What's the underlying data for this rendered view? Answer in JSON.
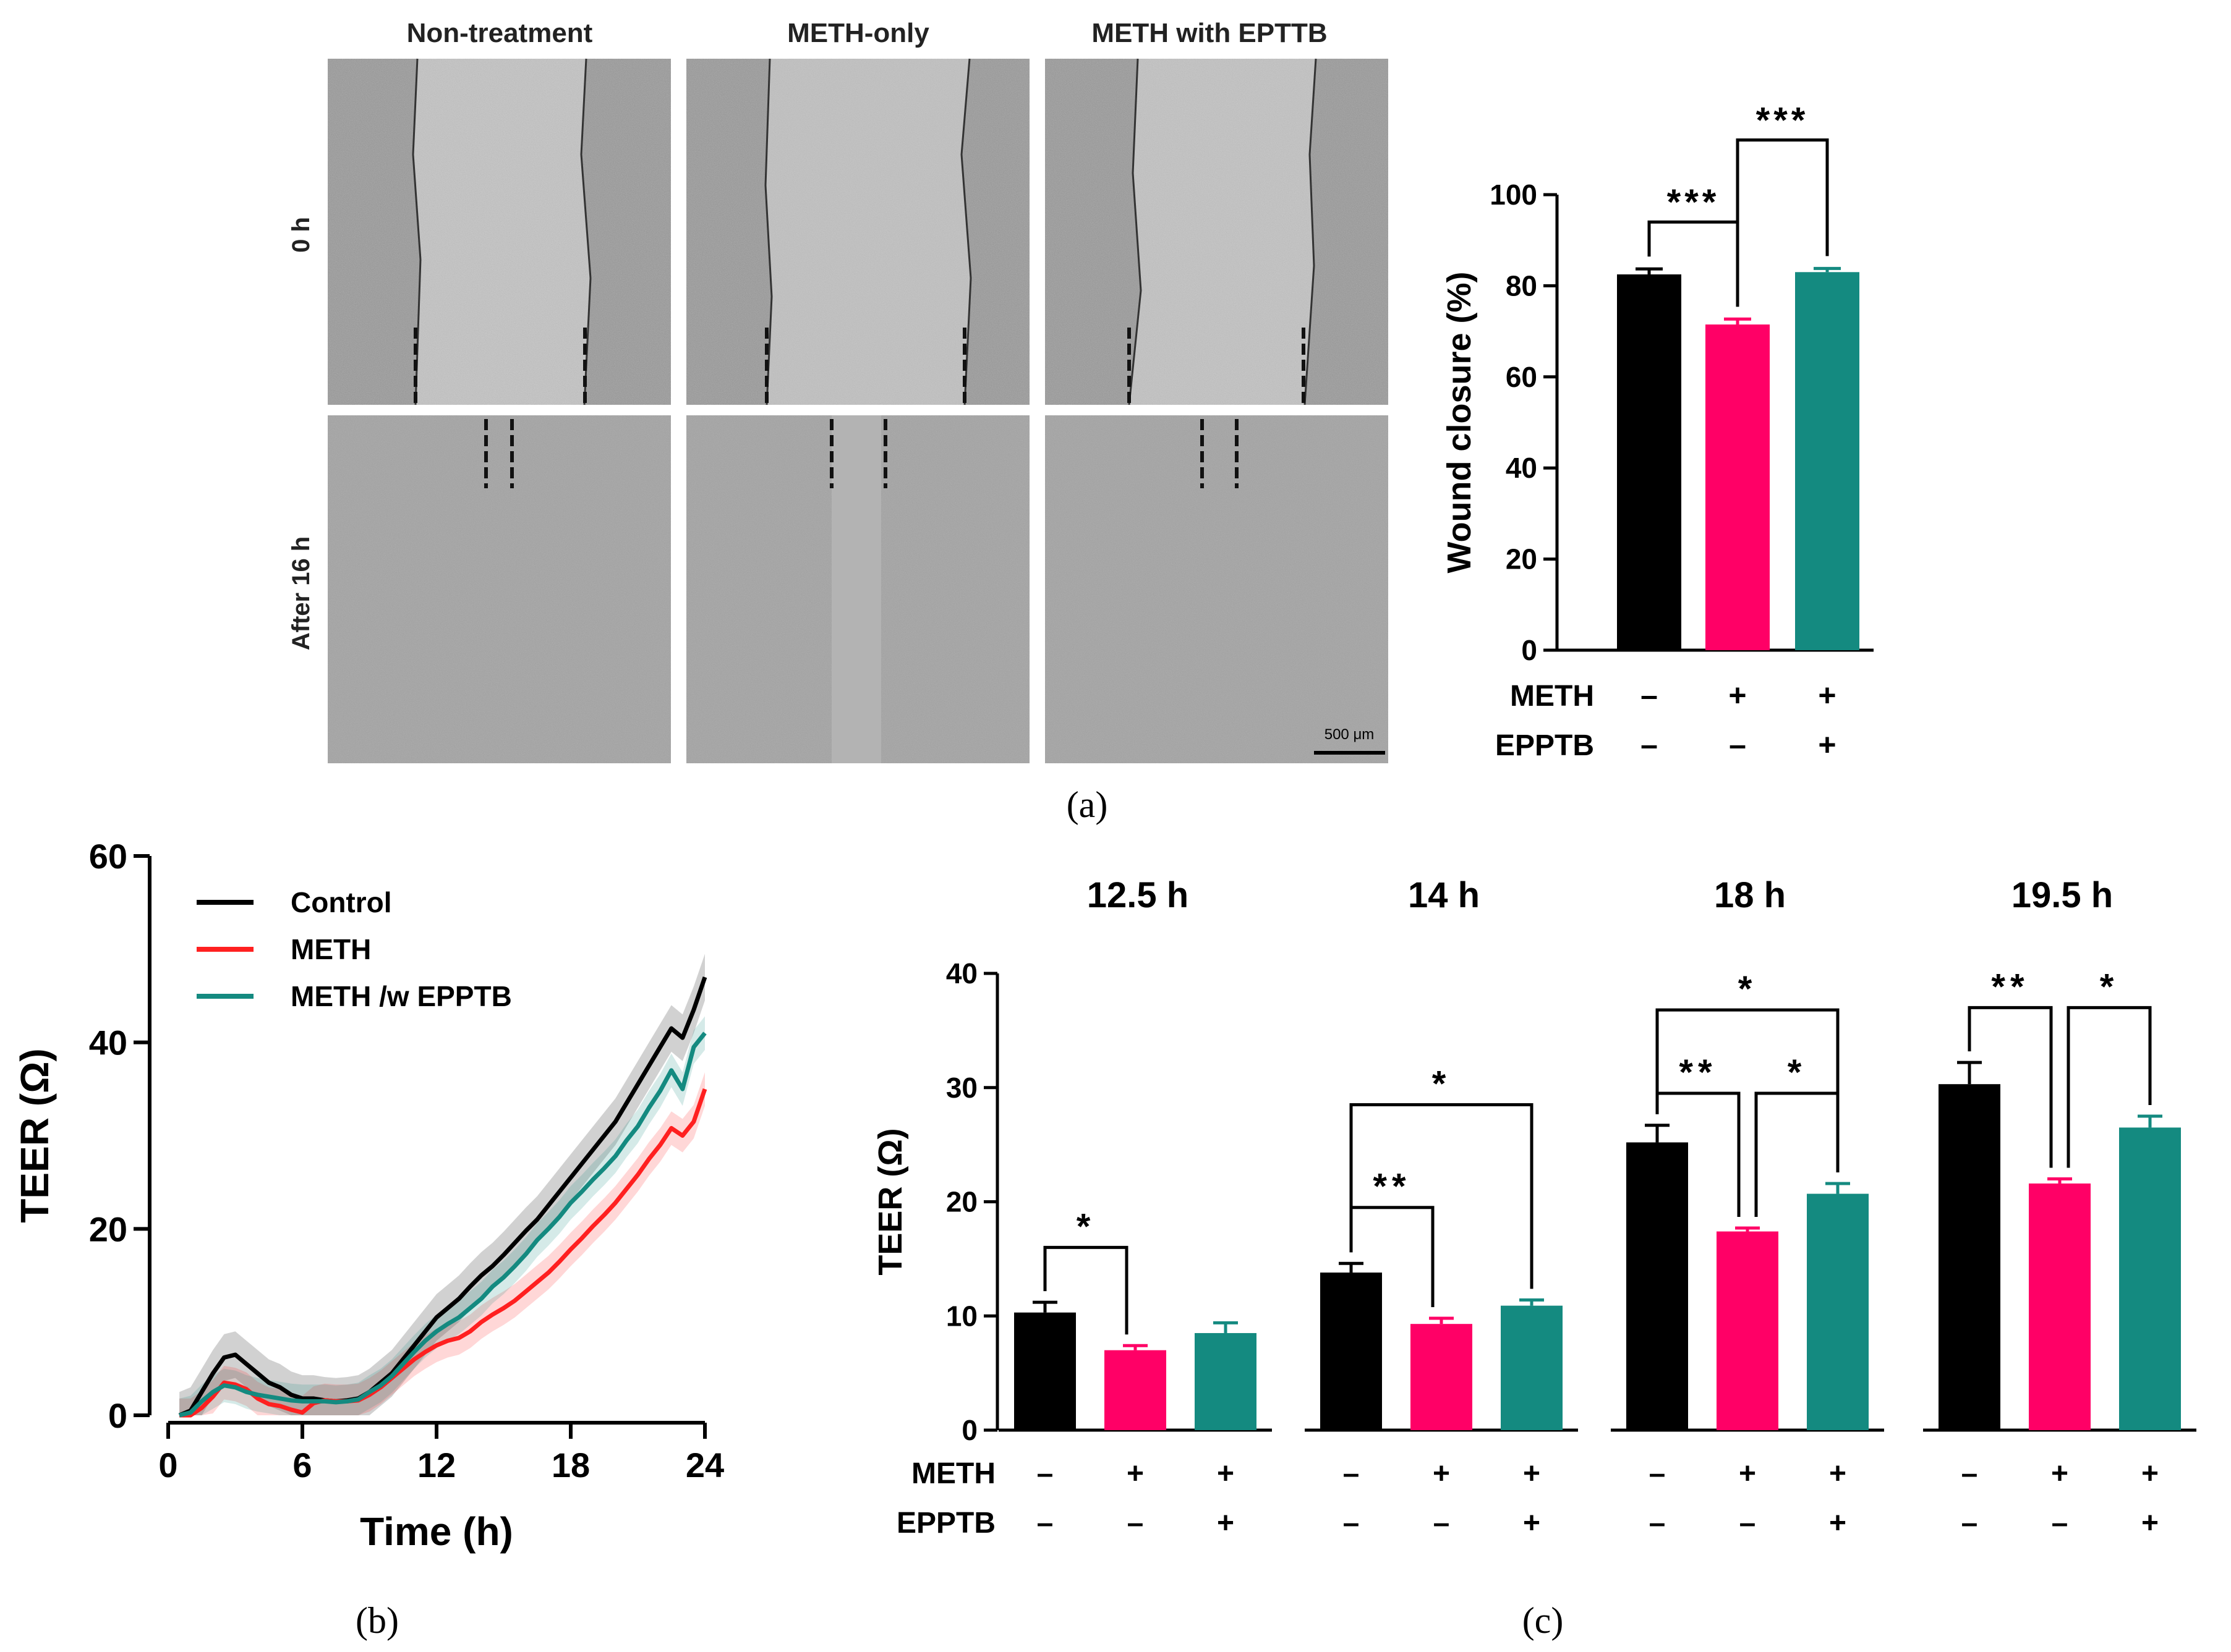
{
  "micrographs": {
    "columns": [
      "Non-treatment",
      "METH-only",
      "METH with EPTTB"
    ],
    "rows": [
      "0 h",
      "After 16 h"
    ],
    "scale_bar": "500 μm"
  },
  "panel_labels": {
    "a": "(a)",
    "b": "(b)",
    "c": "(c)"
  },
  "colors": {
    "control": "#000000",
    "meth_bar": "#ff0066",
    "meth_line": "#ff2020",
    "epptb": "#148a80"
  },
  "chart_data": [
    {
      "id": "wound",
      "type": "bar",
      "categories": [
        "Control",
        "METH",
        "METH + EPPTB"
      ],
      "values": [
        82.5,
        71.5,
        83
      ],
      "errors": [
        1.2,
        1.2,
        0.8
      ],
      "ylabel": "Wound closure (%)",
      "ylim": [
        0,
        100
      ],
      "yticks": [
        0,
        20,
        40,
        60,
        80,
        100
      ],
      "condition_rows": [
        {
          "label": "METH",
          "signs": [
            "–",
            "+",
            "+"
          ]
        },
        {
          "label": "EPPTB",
          "signs": [
            "–",
            "–",
            "+"
          ]
        }
      ],
      "significance": [
        {
          "from": 0,
          "to": 1,
          "label": "***",
          "y": 94
        },
        {
          "from": 1,
          "to": 2,
          "label": "***",
          "y": 112
        }
      ]
    },
    {
      "id": "teer_time",
      "type": "line",
      "xlabel": "Time (h)",
      "ylabel": "TEER (Ω)",
      "xlim": [
        0,
        24
      ],
      "ylim": [
        0,
        60
      ],
      "xticks": [
        0,
        6,
        12,
        18,
        24
      ],
      "yticks": [
        0,
        20,
        40,
        60
      ],
      "x": [
        0.5,
        1,
        1.5,
        2,
        2.5,
        3,
        3.5,
        4,
        4.5,
        5,
        5.5,
        6,
        6.5,
        7,
        7.5,
        8,
        8.5,
        9,
        9.5,
        10,
        10.5,
        11,
        11.5,
        12,
        12.5,
        13,
        13.5,
        14,
        14.5,
        15,
        15.5,
        16,
        16.5,
        17,
        17.5,
        18,
        18.5,
        19,
        19.5,
        20,
        20.5,
        21,
        21.5,
        22,
        22.5,
        23,
        23.5,
        24
      ],
      "series": [
        {
          "name": "Control",
          "color": "#000000",
          "band": 2.5,
          "values": [
            0,
            0.5,
            2.5,
            4.5,
            6.2,
            6.5,
            5.5,
            4.5,
            3.5,
            3.0,
            2.2,
            1.8,
            1.8,
            1.6,
            1.5,
            1.6,
            1.8,
            2.5,
            3.5,
            4.5,
            6.0,
            7.5,
            9.0,
            10.5,
            11.5,
            12.5,
            13.8,
            15.0,
            16.0,
            17.2,
            18.5,
            19.8,
            21.0,
            22.5,
            24.0,
            25.5,
            27.0,
            28.5,
            30.0,
            31.5,
            33.5,
            35.5,
            37.5,
            39.5,
            41.5,
            40.5,
            43.5,
            47.0
          ]
        },
        {
          "name": "METH",
          "color": "#ff2020",
          "band": 1.8,
          "values": [
            0,
            0,
            0.8,
            2.0,
            3.5,
            3.3,
            2.8,
            1.8,
            1.2,
            1.0,
            0.6,
            0.3,
            1.3,
            1.6,
            1.5,
            1.5,
            1.6,
            2.2,
            3.0,
            4.0,
            5.0,
            6.0,
            6.8,
            7.5,
            8.0,
            8.3,
            9.0,
            10.0,
            10.8,
            11.5,
            12.3,
            13.3,
            14.3,
            15.3,
            16.5,
            17.8,
            19.0,
            20.3,
            21.5,
            22.8,
            24.3,
            25.8,
            27.5,
            29.0,
            30.8,
            30.0,
            31.5,
            35.0
          ]
        },
        {
          "name": "METH /w EPPTB",
          "color": "#148a80",
          "band": 1.8,
          "values": [
            0,
            0.3,
            1.5,
            2.5,
            3.2,
            3.0,
            2.5,
            2.2,
            2.0,
            1.8,
            1.6,
            1.5,
            1.5,
            1.5,
            1.4,
            1.5,
            1.7,
            2.5,
            3.2,
            4.2,
            5.5,
            6.8,
            8.0,
            9.0,
            9.8,
            10.5,
            11.5,
            12.5,
            13.8,
            14.8,
            16.0,
            17.3,
            18.8,
            20.0,
            21.3,
            22.8,
            24.0,
            25.3,
            26.5,
            27.8,
            29.5,
            31.0,
            33.0,
            34.8,
            37.0,
            35.0,
            39.5,
            41.0
          ]
        }
      ]
    },
    {
      "id": "teer_timepoints",
      "type": "bar",
      "ylabel": "TEER (Ω)",
      "ylim": [
        0,
        40
      ],
      "yticks": [
        0,
        10,
        20,
        30,
        40
      ],
      "groups": [
        {
          "title": "12.5 h",
          "values": [
            10.3,
            7.0,
            8.5
          ],
          "errors": [
            0.9,
            0.4,
            0.9
          ],
          "significance": [
            {
              "from": 0,
              "to": 1,
              "label": "*",
              "y": 16
            }
          ]
        },
        {
          "title": "14 h",
          "values": [
            13.8,
            9.3,
            10.9
          ],
          "errors": [
            0.8,
            0.5,
            0.5
          ],
          "significance": [
            {
              "from": 0,
              "to": 1,
              "label": "**",
              "y": 19.5
            },
            {
              "from": 0,
              "to": 2,
              "label": "*",
              "y": 28.5
            }
          ]
        },
        {
          "title": "18 h",
          "values": [
            25.2,
            17.4,
            20.7
          ],
          "errors": [
            1.5,
            0.3,
            0.9
          ],
          "significance": [
            {
              "from": 0,
              "to": 1,
              "label": "**",
              "y": 29.5
            },
            {
              "from": 1,
              "to": 2,
              "label": "*",
              "y": 29.5
            },
            {
              "from": 0,
              "to": 2,
              "label": "*",
              "y": 36.8
            }
          ]
        },
        {
          "title": "19.5 h",
          "values": [
            30.3,
            21.6,
            26.5
          ],
          "errors": [
            1.9,
            0.4,
            1.0
          ],
          "significance": [
            {
              "from": 0,
              "to": 1,
              "label": "**",
              "y": 37
            },
            {
              "from": 1,
              "to": 2,
              "label": "*",
              "y": 37
            }
          ]
        }
      ],
      "condition_rows": [
        {
          "label": "METH",
          "signs": [
            "–",
            "+",
            "+"
          ]
        },
        {
          "label": "EPPTB",
          "signs": [
            "–",
            "–",
            "+"
          ]
        }
      ]
    }
  ]
}
